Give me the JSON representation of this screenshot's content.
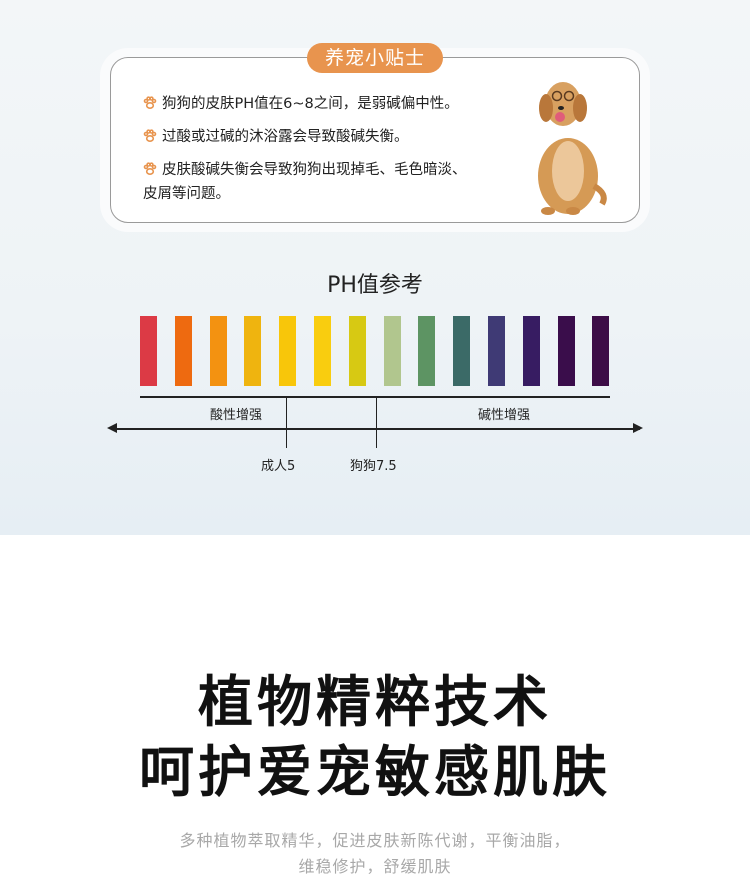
{
  "tips_card": {
    "tag": "养宠小贴士",
    "tips": [
      "狗狗的皮肤PH值在6~8之间，是弱碱偏中性。",
      "过酸或过碱的沐浴露会导致酸碱失衡。",
      "皮肤酸碱失衡会导致狗狗出现掉毛、毛色暗淡、",
      "皮屑等问题。"
    ],
    "icon": "paw-icon",
    "accent": "#e8944e"
  },
  "ph_reference": {
    "title": "PH值参考",
    "bar_colors": [
      "#dc3a45",
      "#ee6a10",
      "#f39211",
      "#efb40f",
      "#f8c60a",
      "#f9cd0f",
      "#d7c913",
      "#b1c68e",
      "#5d9463",
      "#3b6a67",
      "#3f3a75",
      "#371c62",
      "#3a0d4b",
      "#3d0d47"
    ],
    "acid_label": "酸性增强",
    "alkaline_label": "碱性增强",
    "human_marker": "成人5",
    "dog_marker": "狗狗7.5"
  },
  "headline": {
    "line1": "植物精粹技术",
    "line2": "呵护爱宠敏感肌肤",
    "sub1": "多种植物萃取精华，促进皮肤新陈代谢，平衡油脂，",
    "sub2": "维稳修护，舒缓肌肤"
  }
}
